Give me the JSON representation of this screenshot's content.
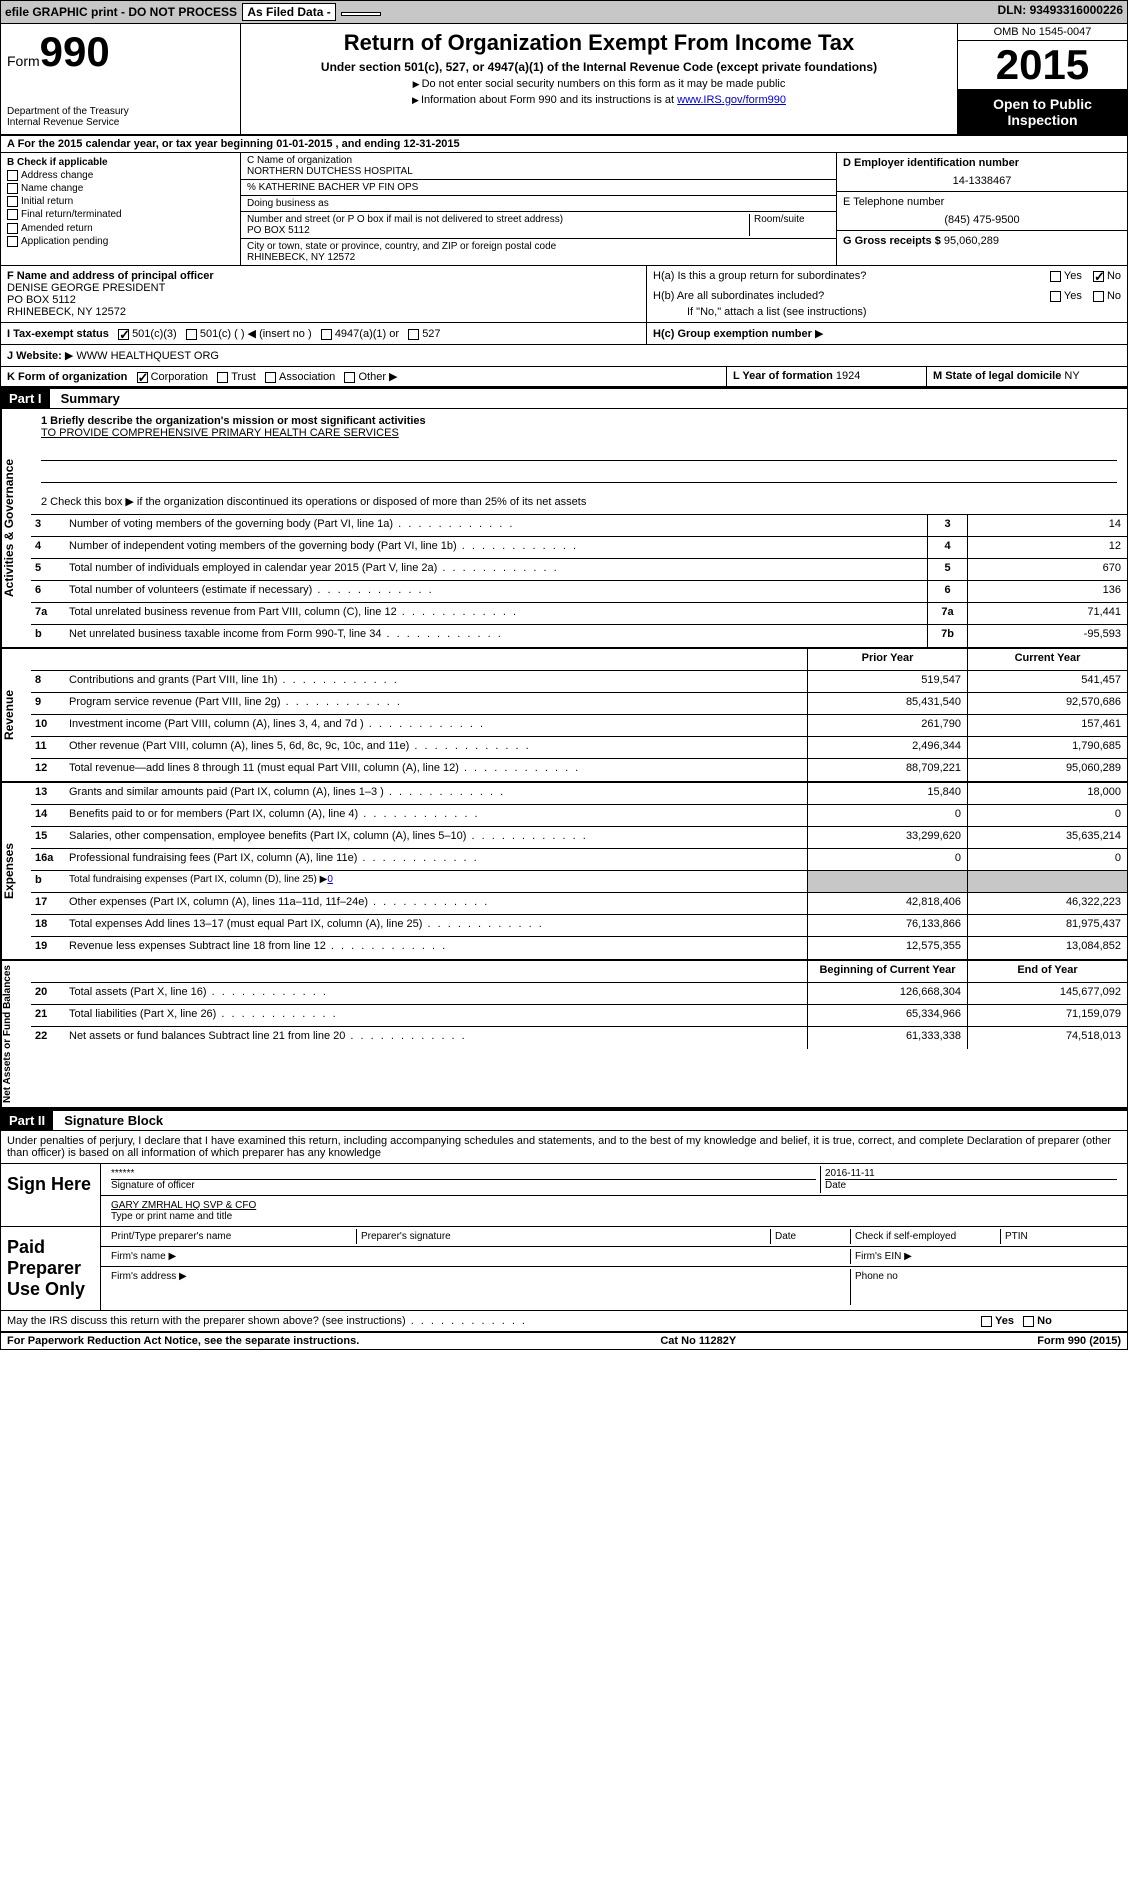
{
  "topbar": {
    "efile": "efile GRAPHIC print - DO NOT PROCESS",
    "asfiled": "As Filed Data -",
    "dln_label": "DLN:",
    "dln": "93493316000226"
  },
  "header": {
    "form_label": "Form",
    "form_num": "990",
    "dept": "Department of the Treasury\nInternal Revenue Service",
    "title": "Return of Organization Exempt From Income Tax",
    "subtitle": "Under section 501(c), 527, or 4947(a)(1) of the Internal Revenue Code (except private foundations)",
    "note1": "Do not enter social security numbers on this form as it may be made public",
    "note2": "Information about Form 990 and its instructions is at",
    "note2_link": "www.IRS.gov/form990",
    "omb": "OMB No 1545-0047",
    "year": "2015",
    "open": "Open to Public Inspection"
  },
  "rowA": {
    "text_a": "A  For the 2015 calendar year, or tax year beginning",
    "begin": "01-01-2015",
    "text_b": ", and ending",
    "end": "12-31-2015"
  },
  "boxB": {
    "label": "B  Check if applicable",
    "items": [
      "Address change",
      "Name change",
      "Initial return",
      "Final return/terminated",
      "Amended return",
      "Application pending"
    ]
  },
  "boxC": {
    "label": "C Name of organization",
    "org": "NORTHERN DUTCHESS HOSPITAL",
    "care_of": "% KATHERINE BACHER VP FIN OPS",
    "dba_label": "Doing business as",
    "street_label": "Number and street (or P O box if mail is not delivered to street address)",
    "room_label": "Room/suite",
    "street": "PO BOX 5112",
    "city_label": "City or town, state or province, country, and ZIP or foreign postal code",
    "city": "RHINEBECK, NY  12572"
  },
  "boxD": {
    "label": "D Employer identification number",
    "value": "14-1338467"
  },
  "boxE": {
    "label": "E Telephone number",
    "value": "(845) 475-9500"
  },
  "boxG": {
    "label": "G Gross receipts $",
    "value": "95,060,289"
  },
  "boxF": {
    "label": "F  Name and address of principal officer",
    "name": "DENISE GEORGE PRESIDENT",
    "street": "PO BOX 5112",
    "city": "RHINEBECK, NY  12572"
  },
  "boxH": {
    "a_label": "H(a)  Is this a group return for subordinates?",
    "a_no": "No",
    "b_label": "H(b)  Are all subordinates included?",
    "b_note": "If \"No,\" attach a list  (see instructions)",
    "c_label": "H(c)  Group exemption number"
  },
  "rowI": {
    "label": "I   Tax-exempt status",
    "opt1": "501(c)(3)",
    "opt2": "501(c) (  )",
    "opt2_note": "(insert no )",
    "opt3": "4947(a)(1) or",
    "opt4": "527"
  },
  "rowJ": {
    "label": "J  Website:",
    "value": "WWW HEALTHQUEST ORG"
  },
  "rowK": {
    "label": "K Form of organization",
    "opts": [
      "Corporation",
      "Trust",
      "Association",
      "Other"
    ]
  },
  "rowL": {
    "label": "L Year of formation",
    "value": "1924"
  },
  "rowM": {
    "label": "M State of legal domicile",
    "value": "NY"
  },
  "part1": {
    "header": "Part I",
    "title": "Summary",
    "line1_label": "1 Briefly describe the organization's mission or most significant activities",
    "line1_value": "TO PROVIDE COMPREHENSIVE PRIMARY HEALTH CARE SERVICES",
    "line2": "2  Check this box ▶       if the organization discontinued its operations or disposed of more than 25% of its net assets",
    "vlabels": {
      "gov": "Activities & Governance",
      "rev": "Revenue",
      "exp": "Expenses",
      "net": "Net Assets or Fund Balances"
    },
    "lines_gov": [
      {
        "n": "3",
        "d": "Number of voting members of the governing body (Part VI, line 1a)",
        "box": "3",
        "v": "14"
      },
      {
        "n": "4",
        "d": "Number of independent voting members of the governing body (Part VI, line 1b)",
        "box": "4",
        "v": "12"
      },
      {
        "n": "5",
        "d": "Total number of individuals employed in calendar year 2015 (Part V, line 2a)",
        "box": "5",
        "v": "670"
      },
      {
        "n": "6",
        "d": "Total number of volunteers (estimate if necessary)",
        "box": "6",
        "v": "136"
      },
      {
        "n": "7a",
        "d": "Total unrelated business revenue from Part VIII, column (C), line 12",
        "box": "7a",
        "v": "71,441"
      },
      {
        "n": "b",
        "d": "Net unrelated business taxable income from Form 990-T, line 34",
        "box": "7b",
        "v": "-95,593"
      }
    ],
    "col_headers": {
      "py": "Prior Year",
      "cy": "Current Year"
    },
    "lines_rev": [
      {
        "n": "8",
        "d": "Contributions and grants (Part VIII, line 1h)",
        "py": "519,547",
        "cy": "541,457"
      },
      {
        "n": "9",
        "d": "Program service revenue (Part VIII, line 2g)",
        "py": "85,431,540",
        "cy": "92,570,686"
      },
      {
        "n": "10",
        "d": "Investment income (Part VIII, column (A), lines 3, 4, and 7d )",
        "py": "261,790",
        "cy": "157,461"
      },
      {
        "n": "11",
        "d": "Other revenue (Part VIII, column (A), lines 5, 6d, 8c, 9c, 10c, and 11e)",
        "py": "2,496,344",
        "cy": "1,790,685"
      },
      {
        "n": "12",
        "d": "Total revenue—add lines 8 through 11 (must equal Part VIII, column (A), line 12)",
        "py": "88,709,221",
        "cy": "95,060,289"
      }
    ],
    "lines_exp": [
      {
        "n": "13",
        "d": "Grants and similar amounts paid (Part IX, column (A), lines 1–3 )",
        "py": "15,840",
        "cy": "18,000"
      },
      {
        "n": "14",
        "d": "Benefits paid to or for members (Part IX, column (A), line 4)",
        "py": "0",
        "cy": "0"
      },
      {
        "n": "15",
        "d": "Salaries, other compensation, employee benefits (Part IX, column (A), lines 5–10)",
        "py": "33,299,620",
        "cy": "35,635,214"
      },
      {
        "n": "16a",
        "d": "Professional fundraising fees (Part IX, column (A), line 11e)",
        "py": "0",
        "cy": "0"
      },
      {
        "n": "b",
        "d": "Total fundraising expenses (Part IX, column (D), line 25) ▶",
        "extra": "0",
        "py": "",
        "cy": ""
      },
      {
        "n": "17",
        "d": "Other expenses (Part IX, column (A), lines 11a–11d, 11f–24e)",
        "py": "42,818,406",
        "cy": "46,322,223"
      },
      {
        "n": "18",
        "d": "Total expenses Add lines 13–17 (must equal Part IX, column (A), line 25)",
        "py": "76,133,866",
        "cy": "81,975,437"
      },
      {
        "n": "19",
        "d": "Revenue less expenses Subtract line 18 from line 12",
        "py": "12,575,355",
        "cy": "13,084,852"
      }
    ],
    "col_headers2": {
      "py": "Beginning of Current Year",
      "cy": "End of Year"
    },
    "lines_net": [
      {
        "n": "20",
        "d": "Total assets (Part X, line 16)",
        "py": "126,668,304",
        "cy": "145,677,092"
      },
      {
        "n": "21",
        "d": "Total liabilities (Part X, line 26)",
        "py": "65,334,966",
        "cy": "71,159,079"
      },
      {
        "n": "22",
        "d": "Net assets or fund balances Subtract line 21 from line 20",
        "py": "61,333,338",
        "cy": "74,518,013"
      }
    ]
  },
  "part2": {
    "header": "Part II",
    "title": "Signature Block",
    "intro": "Under penalties of perjury, I declare that I have examined this return, including accompanying schedules and statements, and to the best of my knowledge and belief, it is true, correct, and complete Declaration of preparer (other than officer) is based on all information of which preparer has any knowledge",
    "sign_here": "Sign Here",
    "sig_masked": "******",
    "sig_officer_label": "Signature of officer",
    "sig_date": "2016-11-11",
    "sig_date_label": "Date",
    "officer_name": "GARY ZMRHAL HQ SVP & CFO",
    "officer_name_label": "Type or print name and title",
    "paid": "Paid Preparer Use Only",
    "prep_name_label": "Print/Type preparer's name",
    "prep_sig_label": "Preparer's signature",
    "prep_date_label": "Date",
    "prep_check": "Check        if self-employed",
    "ptin": "PTIN",
    "firm_name": "Firm's name   ▶",
    "firm_ein": "Firm's EIN ▶",
    "firm_addr": "Firm's address ▶",
    "phone": "Phone no",
    "discuss": "May the IRS discuss this return with the preparer shown above? (see instructions)",
    "yes": "Yes",
    "no": "No"
  },
  "footer": {
    "left": "For Paperwork Reduction Act Notice, see the separate instructions.",
    "mid": "Cat No 11282Y",
    "right": "Form 990 (2015)"
  },
  "labels": {
    "yes": "Yes",
    "no": "No"
  }
}
